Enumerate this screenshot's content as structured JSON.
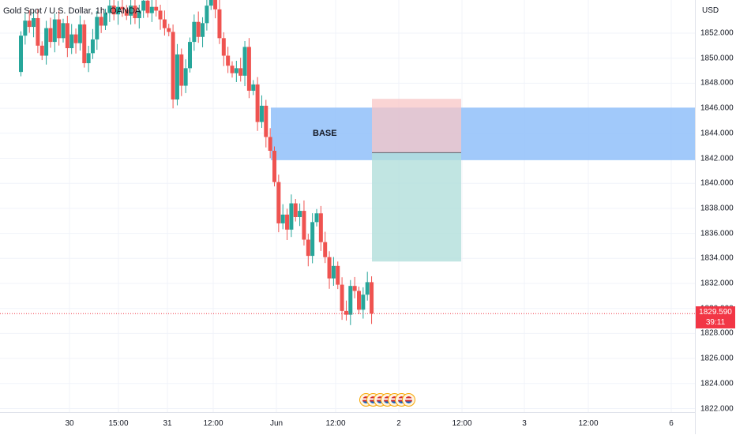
{
  "symbol": {
    "title": "Gold Spot / U.S. Dollar, 1h, OANDA"
  },
  "zone_label": "BASE",
  "price_axis": {
    "currency": "USD",
    "ticks": [
      "1852.000",
      "1850.000",
      "1848.000",
      "1846.000",
      "1844.000",
      "1842.000",
      "1840.000",
      "1838.000",
      "1836.000",
      "1834.000",
      "1832.000",
      "1830.000",
      "1828.000",
      "1826.000",
      "1824.000",
      "1822.000"
    ],
    "last_price": "1829.590",
    "countdown": "39:11"
  },
  "time_axis": {
    "labels": [
      "30",
      "15:00",
      "31",
      "12:00",
      "Jun",
      "12:00",
      "2",
      "12:00",
      "3",
      "12:00",
      "6"
    ]
  },
  "event_icons": [
    "us-flag-icon",
    "us-flag-icon",
    "us-flag-icon",
    "us-flag-icon",
    "us-flag-icon",
    "us-flag-icon",
    "us-flag-icon"
  ],
  "colors": {
    "up": "#26a69a",
    "down": "#ef5350",
    "base_zone": "#90bff9",
    "target_zone": "#b2dfdb",
    "stop_zone": "#f8c5c5",
    "last_price": "#f23645"
  }
}
